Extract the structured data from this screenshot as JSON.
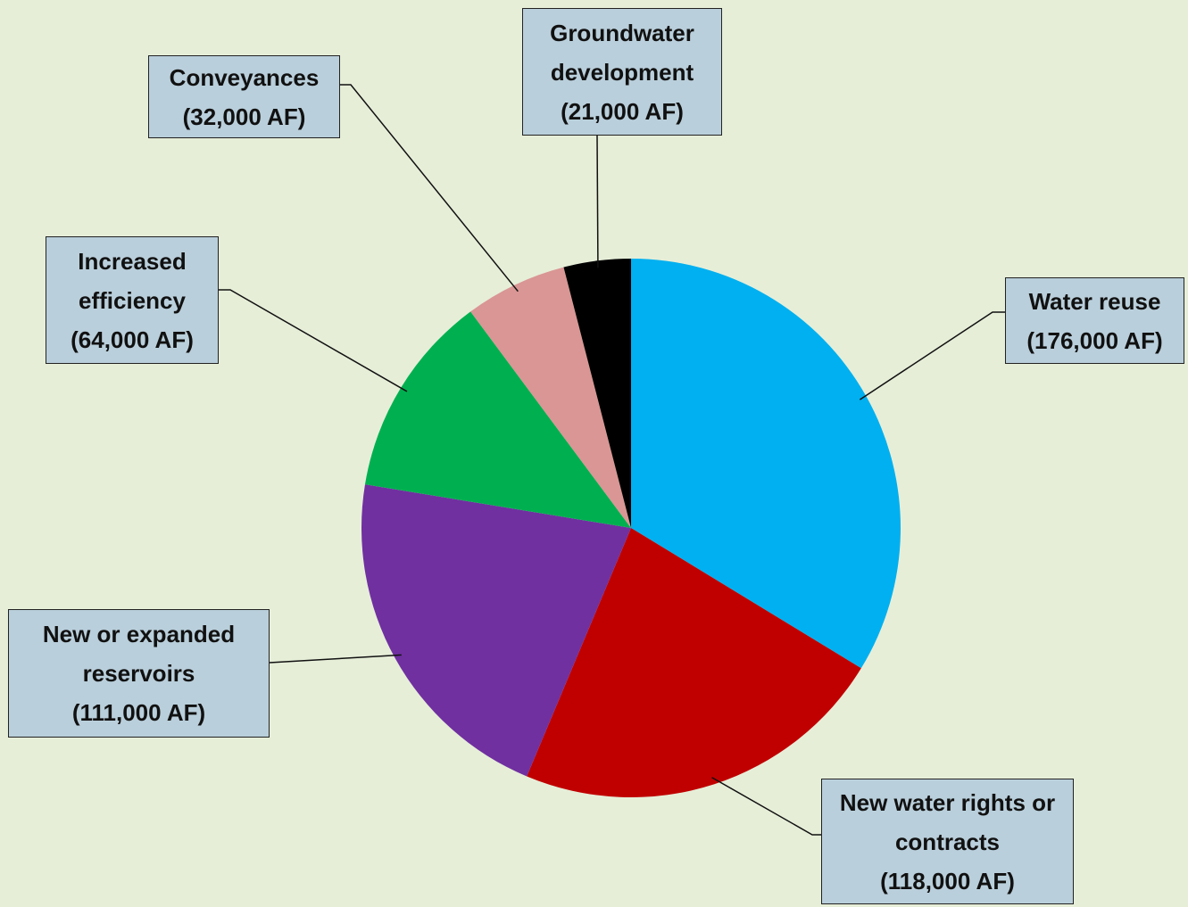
{
  "chart_data": {
    "type": "pie",
    "categories": [
      "Water reuse",
      "New water rights or contracts",
      "New or expanded reservoirs",
      "Increased efficiency",
      "Conveyances",
      "Groundwater development"
    ],
    "values": [
      176000,
      118000,
      111000,
      64000,
      32000,
      21000
    ],
    "value_labels": [
      "(176,000 AF)",
      "(118,000 AF)",
      "(111,000 AF)",
      "(64,000 AF)",
      "(32,000 AF)",
      "(21,000 AF)"
    ],
    "colors": [
      "#00b0f0",
      "#c00000",
      "#7030a0",
      "#00b050",
      "#d99694",
      "#000000"
    ]
  }
}
